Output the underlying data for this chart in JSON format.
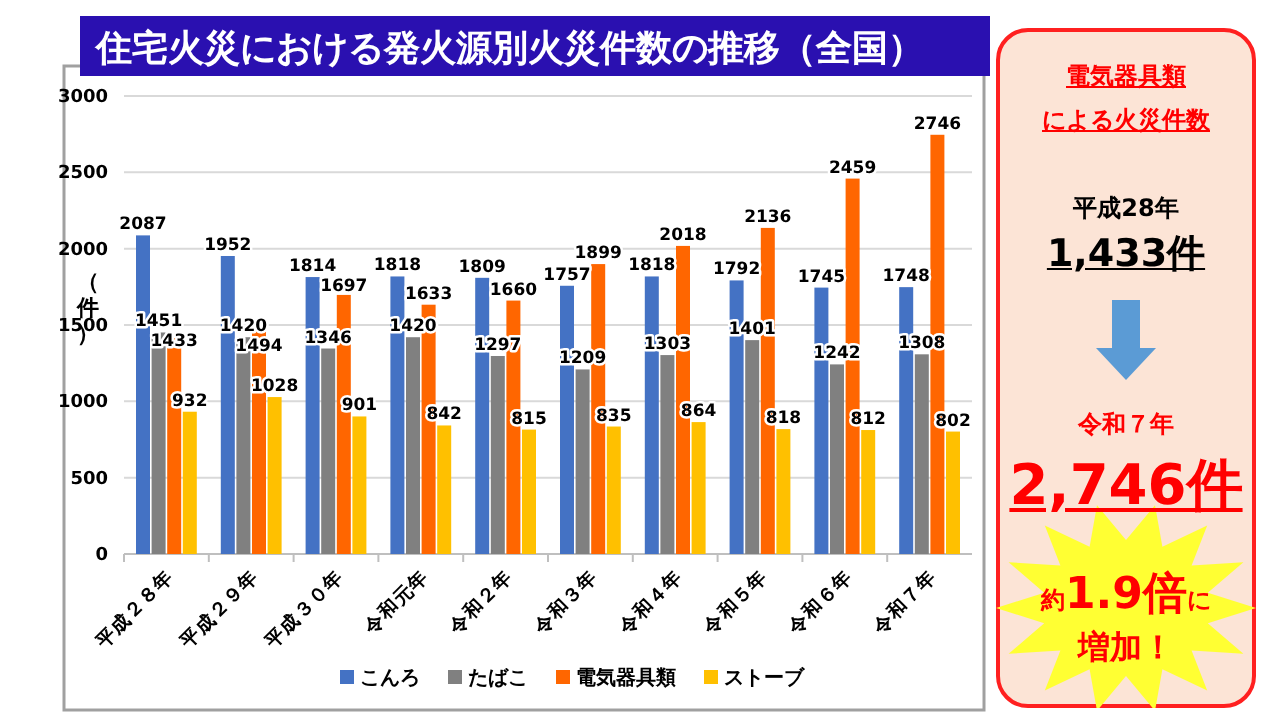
{
  "chart_data": [
    {
      "type": "bar",
      "title": "住宅火災における発火源別火災件数の推移（全国）",
      "ylabel": "（件）",
      "categories": [
        "平成２８年",
        "平成２９年",
        "平成３０年",
        "令和元年",
        "令和２年",
        "令和３年",
        "令和４年",
        "令和５年",
        "令和６年",
        "令和７年"
      ],
      "series": [
        {
          "name": "こんろ",
          "color": "#4472c4",
          "values": [
            2087,
            1952,
            1814,
            1818,
            1809,
            1757,
            1818,
            1792,
            1745,
            1748
          ]
        },
        {
          "name": "たばこ",
          "color": "#808080",
          "values": [
            1451,
            1420,
            1346,
            1420,
            1297,
            1209,
            1303,
            1401,
            1242,
            1308
          ]
        },
        {
          "name": "電気器具類",
          "color": "#ff6600",
          "values": [
            1433,
            1494,
            1697,
            1633,
            1660,
            1899,
            2018,
            2136,
            2459,
            2746
          ]
        },
        {
          "name": "ストーブ",
          "color": "#ffc000",
          "values": [
            932,
            1028,
            901,
            842,
            815,
            835,
            864,
            818,
            812,
            802
          ]
        }
      ],
      "ylim": [
        0,
        3000
      ],
      "yticks": [
        0,
        500,
        1000,
        1500,
        2000,
        2500,
        3000
      ],
      "grid": "y",
      "data_labels": true,
      "legend": "bottom"
    },
    {
      "type": "other",
      "title": "電気器具類",
      "subtitle": "による火災件数",
      "annotations": [
        "平成28年",
        "1,433件",
        "令和７年",
        "2,746件",
        "約",
        "1.9倍",
        "に",
        "増加！"
      ]
    }
  ]
}
